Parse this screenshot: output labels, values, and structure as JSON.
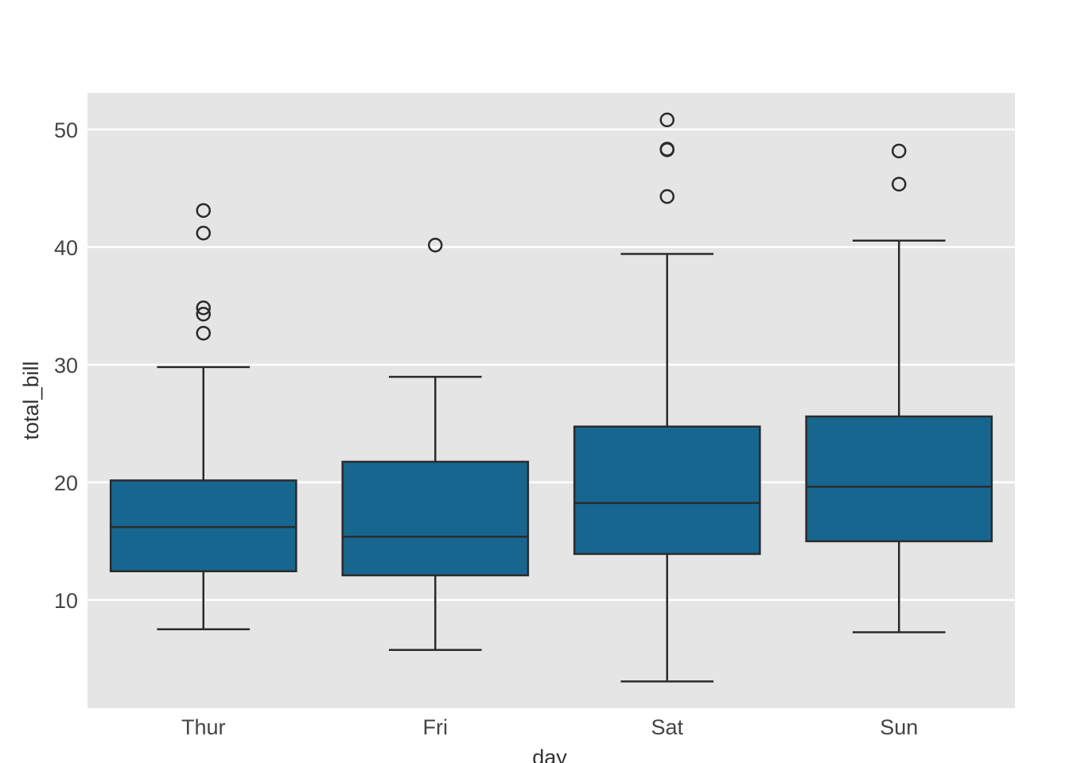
{
  "chart_data": {
    "type": "box",
    "title": "",
    "xlabel": "day",
    "ylabel": "total_bill",
    "categories": [
      "Thur",
      "Fri",
      "Sat",
      "Sun"
    ],
    "ylim": [
      0.8,
      53.1
    ],
    "yticks": [
      10,
      20,
      30,
      40,
      50
    ],
    "grid": "y",
    "colors": {
      "box": "#176690",
      "edge": "#2b2b2b",
      "plot_bg": "#e5e5e5",
      "grid": "#ffffff"
    },
    "boxes": [
      {
        "day": "Thur",
        "whisker_low": 7.51,
        "q1": 12.44,
        "median": 16.2,
        "q3": 20.16,
        "whisker_high": 29.8,
        "outliers": [
          32.68,
          34.3,
          34.83,
          41.19,
          43.11
        ]
      },
      {
        "day": "Fri",
        "whisker_low": 5.75,
        "q1": 12.09,
        "median": 15.38,
        "q3": 21.75,
        "whisker_high": 28.97,
        "outliers": [
          40.17
        ]
      },
      {
        "day": "Sat",
        "whisker_low": 3.07,
        "q1": 13.91,
        "median": 18.24,
        "q3": 24.74,
        "whisker_high": 39.42,
        "outliers": [
          44.3,
          48.27,
          48.33,
          50.81
        ]
      },
      {
        "day": "Sun",
        "whisker_low": 7.25,
        "q1": 14.99,
        "median": 19.63,
        "q3": 25.6,
        "whisker_high": 40.55,
        "outliers": [
          45.35,
          48.17
        ]
      }
    ]
  }
}
